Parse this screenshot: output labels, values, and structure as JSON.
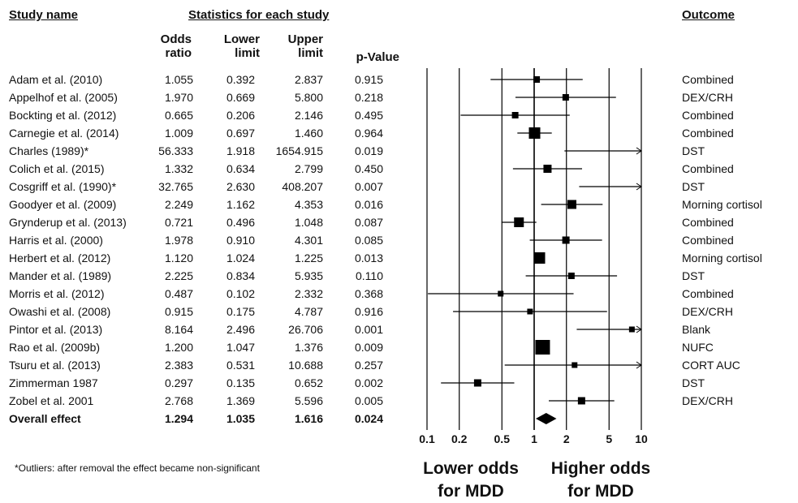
{
  "headers": {
    "study_name": "Study name",
    "stats": "Statistics for each study",
    "outcome": "Outcome",
    "odds_ratio": [
      "Odds",
      "ratio"
    ],
    "lower": [
      "Lower",
      "limit"
    ],
    "upper": [
      "Upper",
      "limit"
    ],
    "pvalue": "p-Value"
  },
  "footnote": "*Outliers: after removal the effect became non-significant",
  "axis_left": [
    "Lower odds",
    "for MDD"
  ],
  "axis_right": [
    "Higher odds",
    "for MDD"
  ],
  "chart_data": {
    "type": "forest",
    "x_scale": "log",
    "xlim": [
      0.1,
      10
    ],
    "x_ticks": [
      "0.1",
      "0.2",
      "0.5",
      "1",
      "2",
      "5",
      "10"
    ],
    "studies": [
      {
        "name": "Adam et al. (2010)",
        "or": "1.055",
        "lower": "0.392",
        "upper": "2.837",
        "p": "0.915",
        "outcome": "Combined",
        "w": 8
      },
      {
        "name": "Appelhof et al. (2005)",
        "or": "1.970",
        "lower": "0.669",
        "upper": "5.800",
        "p": "0.218",
        "outcome": "DEX/CRH",
        "w": 8
      },
      {
        "name": "Bockting et al. (2012)",
        "or": "0.665",
        "lower": "0.206",
        "upper": "2.146",
        "p": "0.495",
        "outcome": "Combined",
        "w": 8
      },
      {
        "name": "Carnegie et al. (2014)",
        "or": "1.009",
        "lower": "0.697",
        "upper": "1.460",
        "p": "0.964",
        "outcome": "Combined",
        "w": 14
      },
      {
        "name": "Charles (1989)*",
        "or": "56.333",
        "lower": "1.918",
        "upper": "1654.915",
        "p": "0.019",
        "outcome": "DST",
        "w": 4
      },
      {
        "name": "Colich et al. (2015)",
        "or": "1.332",
        "lower": "0.634",
        "upper": "2.799",
        "p": "0.450",
        "outcome": "Combined",
        "w": 10
      },
      {
        "name": "Cosgriff et al. (1990)*",
        "or": "32.765",
        "lower": "2.630",
        "upper": "408.207",
        "p": "0.007",
        "outcome": "DST",
        "w": 4
      },
      {
        "name": "Goodyer et al. (2009)",
        "or": "2.249",
        "lower": "1.162",
        "upper": "4.353",
        "p": "0.016",
        "outcome": "Morning cortisol",
        "w": 11
      },
      {
        "name": "Grynderup et al. (2013)",
        "or": "0.721",
        "lower": "0.496",
        "upper": "1.048",
        "p": "0.087",
        "outcome": "Combined",
        "w": 12
      },
      {
        "name": "Harris et al. (2000)",
        "or": "1.978",
        "lower": "0.910",
        "upper": "4.301",
        "p": "0.085",
        "outcome": "Combined",
        "w": 9
      },
      {
        "name": "Herbert et al. (2012)",
        "or": "1.120",
        "lower": "1.024",
        "upper": "1.225",
        "p": "0.013",
        "outcome": "Morning cortisol",
        "w": 14
      },
      {
        "name": "Mander et al. (1989)",
        "or": "2.225",
        "lower": "0.834",
        "upper": "5.935",
        "p": "0.110",
        "outcome": "DST",
        "w": 8
      },
      {
        "name": "Morris et al. (2012)",
        "or": "0.487",
        "lower": "0.102",
        "upper": "2.332",
        "p": "0.368",
        "outcome": "Combined",
        "w": 7
      },
      {
        "name": "Owashi et al. (2008)",
        "or": "0.915",
        "lower": "0.175",
        "upper": "4.787",
        "p": "0.916",
        "outcome": "DEX/CRH",
        "w": 7
      },
      {
        "name": "Pintor et al. (2013)",
        "or": "8.164",
        "lower": "2.496",
        "upper": "26.706",
        "p": "0.001",
        "outcome": "Blank",
        "w": 7
      },
      {
        "name": "Rao et al. (2009b)",
        "or": "1.200",
        "lower": "1.047",
        "upper": "1.376",
        "p": "0.009",
        "outcome": "NUFC",
        "w": 18
      },
      {
        "name": "Tsuru et al. (2013)",
        "or": "2.383",
        "lower": "0.531",
        "upper": "10.688",
        "p": "0.257",
        "outcome": "CORT AUC",
        "w": 7
      },
      {
        "name": "Zimmerman 1987",
        "or": "0.297",
        "lower": "0.135",
        "upper": "0.652",
        "p": "0.002",
        "outcome": "DST",
        "w": 9
      },
      {
        "name": "Zobel et al. 2001",
        "or": "2.768",
        "lower": "1.369",
        "upper": "5.596",
        "p": "0.005",
        "outcome": "DEX/CRH",
        "w": 9
      }
    ],
    "overall": {
      "name": "Overall effect",
      "or": "1.294",
      "lower": "1.035",
      "upper": "1.616",
      "p": "0.024"
    }
  }
}
